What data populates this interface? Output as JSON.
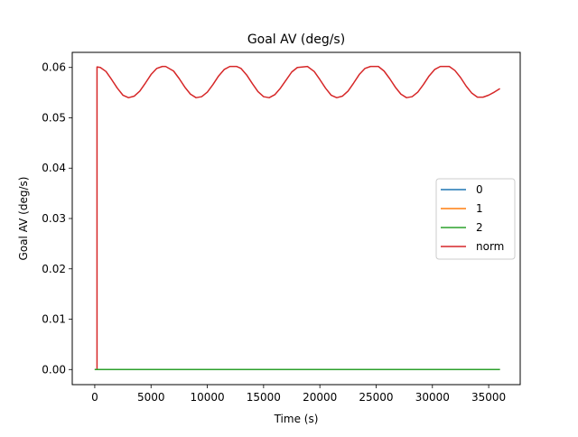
{
  "chart_data": {
    "type": "line",
    "title": "Goal AV (deg/s)",
    "xlabel": "Time (s)",
    "ylabel": "Goal AV (deg/s)",
    "xlim": [
      -2000,
      37800
    ],
    "ylim": [
      -0.003,
      0.063
    ],
    "x_ticks": [
      0,
      5000,
      10000,
      15000,
      20000,
      25000,
      30000,
      35000
    ],
    "y_ticks": [
      0.0,
      0.01,
      0.02,
      0.03,
      0.04,
      0.05,
      0.06
    ],
    "x_tick_labels": [
      "0",
      "5000",
      "10000",
      "15000",
      "20000",
      "25000",
      "30000",
      "35000"
    ],
    "y_tick_labels": [
      "0.00",
      "0.01",
      "0.02",
      "0.03",
      "0.04",
      "0.05",
      "0.06"
    ],
    "legend_position": "center-right",
    "grid": false,
    "series": [
      {
        "name": "0",
        "color": "#1f77b4",
        "points": [
          [
            0,
            0.0
          ],
          [
            36000,
            0.0
          ]
        ]
      },
      {
        "name": "1",
        "color": "#ff7f0e",
        "points": [
          [
            0,
            0.0
          ],
          [
            36000,
            0.0
          ]
        ]
      },
      {
        "name": "2",
        "color": "#2ca02c",
        "points": [
          [
            0,
            0.0
          ],
          [
            36000,
            0.0
          ]
        ]
      },
      {
        "name": "norm",
        "color": "#d62728",
        "points": [
          [
            0,
            0.0
          ],
          [
            200,
            0.0
          ],
          [
            200,
            0.0601
          ],
          [
            500,
            0.06
          ],
          [
            1000,
            0.0592
          ],
          [
            1500,
            0.0576
          ],
          [
            2000,
            0.0559
          ],
          [
            2500,
            0.0545
          ],
          [
            3000,
            0.054
          ],
          [
            3500,
            0.0543
          ],
          [
            4000,
            0.0553
          ],
          [
            4500,
            0.0569
          ],
          [
            5000,
            0.0586
          ],
          [
            5500,
            0.0598
          ],
          [
            6000,
            0.0602
          ],
          [
            6300,
            0.0602
          ],
          [
            7000,
            0.0593
          ],
          [
            7500,
            0.0578
          ],
          [
            8000,
            0.0561
          ],
          [
            8500,
            0.0547
          ],
          [
            9000,
            0.054
          ],
          [
            9500,
            0.0542
          ],
          [
            10000,
            0.0551
          ],
          [
            10500,
            0.0566
          ],
          [
            11000,
            0.0583
          ],
          [
            11500,
            0.0596
          ],
          [
            12000,
            0.0602
          ],
          [
            12600,
            0.0602
          ],
          [
            13000,
            0.0598
          ],
          [
            13500,
            0.0585
          ],
          [
            14000,
            0.0568
          ],
          [
            14500,
            0.0552
          ],
          [
            15000,
            0.0542
          ],
          [
            15500,
            0.054
          ],
          [
            16000,
            0.0546
          ],
          [
            16500,
            0.0559
          ],
          [
            17000,
            0.0575
          ],
          [
            17500,
            0.0591
          ],
          [
            18000,
            0.06
          ],
          [
            18900,
            0.0602
          ],
          [
            19500,
            0.0592
          ],
          [
            20000,
            0.0576
          ],
          [
            20500,
            0.0559
          ],
          [
            21000,
            0.0545
          ],
          [
            21500,
            0.054
          ],
          [
            22000,
            0.0543
          ],
          [
            22500,
            0.0553
          ],
          [
            23000,
            0.0569
          ],
          [
            23500,
            0.0586
          ],
          [
            24000,
            0.0598
          ],
          [
            24500,
            0.0602
          ],
          [
            25200,
            0.0602
          ],
          [
            25700,
            0.0593
          ],
          [
            26200,
            0.0578
          ],
          [
            26700,
            0.0561
          ],
          [
            27200,
            0.0547
          ],
          [
            27700,
            0.054
          ],
          [
            28200,
            0.0542
          ],
          [
            28700,
            0.0551
          ],
          [
            29200,
            0.0566
          ],
          [
            29700,
            0.0583
          ],
          [
            30200,
            0.0596
          ],
          [
            30700,
            0.0602
          ],
          [
            31500,
            0.0602
          ],
          [
            32000,
            0.0594
          ],
          [
            32500,
            0.058
          ],
          [
            33000,
            0.0563
          ],
          [
            33500,
            0.0549
          ],
          [
            34000,
            0.0541
          ],
          [
            34500,
            0.0541
          ],
          [
            35000,
            0.0545
          ],
          [
            35500,
            0.0551
          ],
          [
            36000,
            0.0558
          ]
        ]
      }
    ]
  }
}
